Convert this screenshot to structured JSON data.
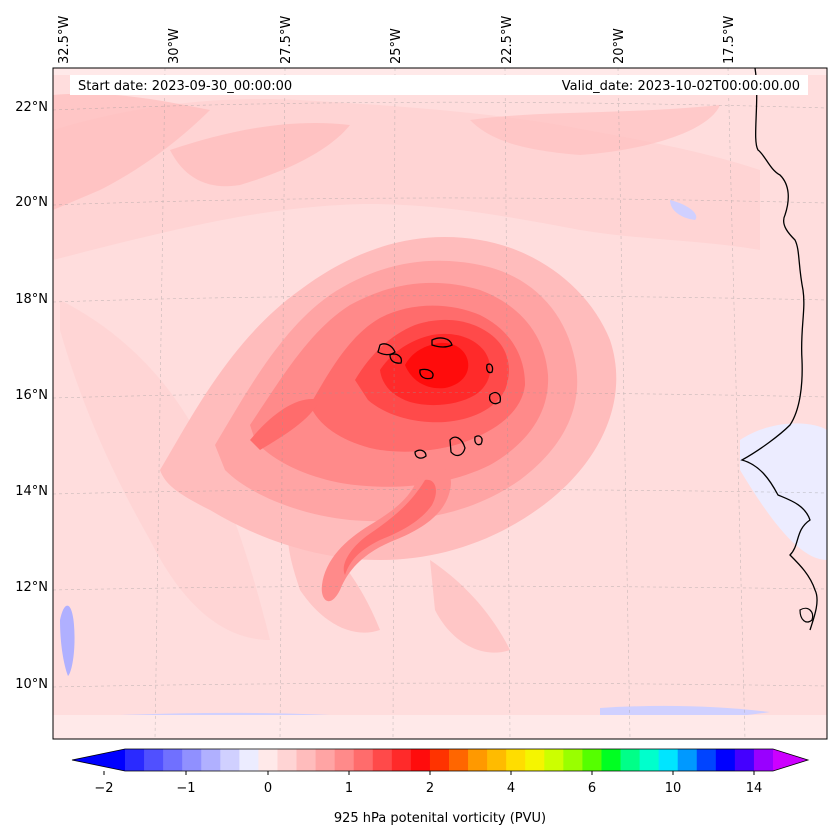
{
  "map": {
    "start_date_label": "Start date: 2023-09-30_00:00:00",
    "valid_date_label": "Valid_date: 2023-10-02T00:00:00.00",
    "lon_labels": [
      "32.5°W",
      "30°W",
      "27.5°W",
      "25°W",
      "22.5°W",
      "20°W",
      "17.5°W"
    ],
    "lat_labels": [
      "22°N",
      "20°N",
      "18°N",
      "16°N",
      "14°N",
      "12°N",
      "10°N"
    ],
    "background_color": "#ffe9e9"
  },
  "colorbar": {
    "label": "925 hPa potenital vorticity (PVU)",
    "tick_labels": [
      "−2",
      "−1",
      "0",
      "1",
      "2",
      "4",
      "6",
      "10",
      "14"
    ],
    "colors": [
      "#0000ff",
      "#2a2aff",
      "#5050ff",
      "#7070ff",
      "#9090ff",
      "#b0b0ff",
      "#d0d0ff",
      "#ececff",
      "#ffe9e9",
      "#ffd4d4",
      "#ffbcbc",
      "#ffa4a4",
      "#ff8a8a",
      "#ff6c6c",
      "#ff4a4a",
      "#ff2a2a",
      "#ff0c0c",
      "#ff3300",
      "#ff6600",
      "#ff9900",
      "#ffbb00",
      "#ffdd00",
      "#f5f500",
      "#ccff00",
      "#99ff00",
      "#55ff00",
      "#00ff22",
      "#00ff88",
      "#00ffcc",
      "#00e5ff",
      "#0099ff",
      "#0044ff",
      "#0000ff",
      "#4400ff",
      "#9900ff",
      "#cc00ff"
    ]
  }
}
